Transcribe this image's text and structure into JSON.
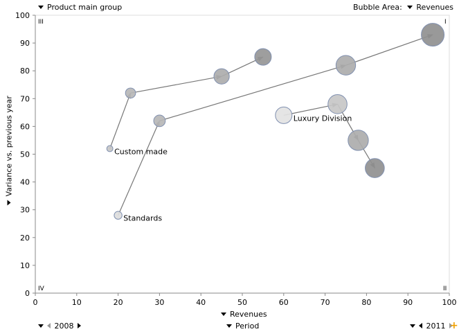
{
  "header": {
    "group_label": "Product main group",
    "bubble_area_label": "Bubble Area:",
    "bubble_area_value": "Revenues"
  },
  "footer": {
    "start_period": "2008",
    "period_label": "Period",
    "end_period": "2011"
  },
  "colors": {
    "axis": "#888888",
    "plot_border": "#dddddd",
    "line": "#777777",
    "bubble_fill_light": "#e4e4e4",
    "bubble_fill_mid": "#c2c2c2",
    "bubble_fill_dark": "#8a8a8a",
    "bubble_stroke": "#8090b0",
    "plus_icon": "#f0a000"
  },
  "chart_data": {
    "type": "scatter",
    "xlabel": "Revenues",
    "ylabel": "Variance vs. previous year",
    "xlim": [
      0,
      100
    ],
    "ylim": [
      0,
      100
    ],
    "xticks": [
      0,
      10,
      20,
      30,
      40,
      50,
      60,
      70,
      80,
      90,
      100
    ],
    "yticks": [
      0,
      10,
      20,
      30,
      40,
      50,
      60,
      70,
      80,
      90,
      100
    ],
    "grid": false,
    "quadrant_labels": {
      "top_left": "III",
      "top_right": "I",
      "bottom_left": "IV",
      "bottom_right": "II"
    },
    "series": [
      {
        "name": "Custom made",
        "points": [
          {
            "x": 18,
            "y": 52,
            "size": 0.08,
            "shade": 0.3
          },
          {
            "x": 23,
            "y": 72,
            "size": 0.24,
            "shade": 0.45
          },
          {
            "x": 45,
            "y": 78,
            "size": 0.45,
            "shade": 0.55
          },
          {
            "x": 55,
            "y": 85,
            "size": 0.5,
            "shade": 0.75
          }
        ]
      },
      {
        "name": "Standards",
        "points": [
          {
            "x": 20,
            "y": 28,
            "size": 0.15,
            "shade": 0.1
          },
          {
            "x": 30,
            "y": 62,
            "size": 0.3,
            "shade": 0.45
          },
          {
            "x": 75,
            "y": 82,
            "size": 0.62,
            "shade": 0.55
          },
          {
            "x": 96,
            "y": 93,
            "size": 0.75,
            "shade": 0.8
          }
        ]
      },
      {
        "name": "Luxury Division",
        "points": [
          {
            "x": 60,
            "y": 64,
            "size": 0.5,
            "shade": 0.05
          },
          {
            "x": 73,
            "y": 68,
            "size": 0.6,
            "shade": 0.3
          },
          {
            "x": 78,
            "y": 55,
            "size": 0.65,
            "shade": 0.55
          },
          {
            "x": 82,
            "y": 45,
            "size": 0.6,
            "shade": 0.8
          }
        ]
      }
    ]
  }
}
